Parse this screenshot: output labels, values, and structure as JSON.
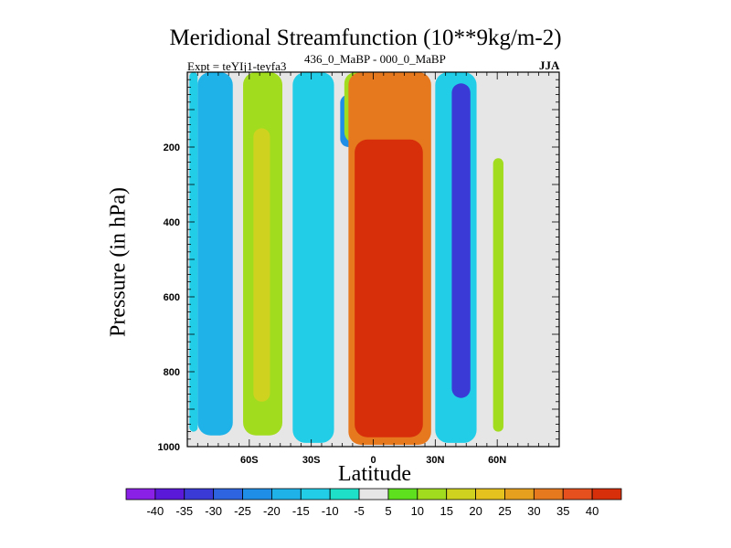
{
  "chart_data": {
    "type": "heatmap",
    "title": "Meridional Streamfunction (10**9kg/m-2)",
    "subtitle_left": "Expt = teYIj1-teyfa3",
    "subtitle_center": "436_0_MaBP - 000_0_MaBP",
    "subtitle_right": "JJA",
    "xlabel": "Latitude",
    "ylabel": "Pressure (in hPa)",
    "xlim": [
      -90,
      90
    ],
    "ylim": [
      1000,
      0
    ],
    "x_ticks": [
      {
        "value": -60,
        "label": "60S"
      },
      {
        "value": -30,
        "label": "30S"
      },
      {
        "value": 0,
        "label": "0"
      },
      {
        "value": 30,
        "label": "30N"
      },
      {
        "value": 60,
        "label": "60N"
      }
    ],
    "y_ticks": [
      {
        "value": 200,
        "label": "200"
      },
      {
        "value": 400,
        "label": "400"
      },
      {
        "value": 600,
        "label": "600"
      },
      {
        "value": 800,
        "label": "800"
      },
      {
        "value": 1000,
        "label": "1000"
      }
    ],
    "colorbar": {
      "colors": [
        "#8a1fe6",
        "#5a19d9",
        "#3a3ad6",
        "#2f64e0",
        "#1f8ee6",
        "#1eb2e8",
        "#22cde8",
        "#1ee0c8",
        "#e6e6e6",
        "#5ee01e",
        "#a2dc1e",
        "#cfd21e",
        "#e6c21e",
        "#e6a01e",
        "#e6781e",
        "#e6501e",
        "#d62f0a"
      ],
      "labels": [
        "-40",
        "-35",
        "-30",
        "-25",
        "-20",
        "-15",
        "-10",
        "-5",
        "5",
        "10",
        "15",
        "20",
        "25",
        "30",
        "35",
        "40"
      ]
    },
    "regions": [
      {
        "note": "blue band",
        "value": -20,
        "lat": [
          -85,
          -68
        ],
        "p": [
          0,
          970
        ]
      },
      {
        "note": "cyan edge",
        "value": -15,
        "lat": [
          -89,
          -85
        ],
        "p": [
          0,
          960
        ]
      },
      {
        "note": "green band",
        "value": 10,
        "lat": [
          -63,
          -44
        ],
        "p": [
          0,
          970
        ]
      },
      {
        "note": "yellow core",
        "value": 17,
        "lat": [
          -58,
          -50
        ],
        "p": [
          150,
          880
        ]
      },
      {
        "note": "cyan band",
        "value": -15,
        "lat": [
          -39,
          -19
        ],
        "p": [
          0,
          990
        ]
      },
      {
        "note": "blue core",
        "value": -25,
        "lat": [
          -16,
          -8
        ],
        "p": [
          60,
          200
        ]
      },
      {
        "note": "green top",
        "value": 10,
        "lat": [
          -14,
          -3
        ],
        "p": [
          0,
          190
        ]
      },
      {
        "note": "orange ring",
        "value": 30,
        "lat": [
          -12,
          28
        ],
        "p": [
          0,
          995
        ]
      },
      {
        "note": "red core",
        "value": 40,
        "lat": [
          -9,
          24
        ],
        "p": [
          180,
          975
        ]
      },
      {
        "note": "cyan band",
        "value": -15,
        "lat": [
          30,
          50
        ],
        "p": [
          0,
          990
        ]
      },
      {
        "note": "dark blue core",
        "value": -35,
        "lat": [
          38,
          47
        ],
        "p": [
          30,
          870
        ]
      },
      {
        "note": "green band",
        "value": 10,
        "lat": [
          58,
          63
        ],
        "p": [
          230,
          960
        ]
      }
    ]
  }
}
